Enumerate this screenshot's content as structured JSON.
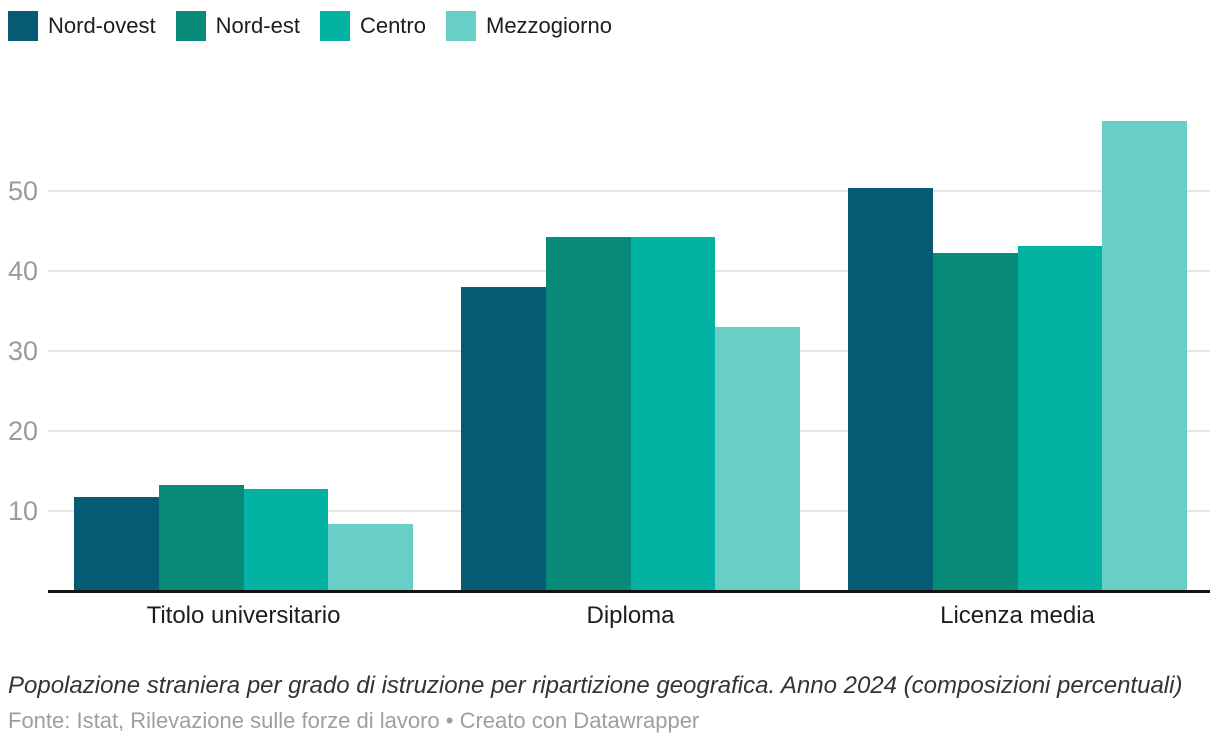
{
  "chart_data": {
    "type": "bar",
    "title": "Popolazione straniera per grado di istruzione per ripartizione geografica. Anno 2024 (composizioni percentuali)",
    "categories": [
      "Titolo universitario",
      "Diploma",
      "Licenza media"
    ],
    "series": [
      {
        "name": "Nord-ovest",
        "color": "#065a73",
        "values": [
          11.7,
          38.0,
          50.4
        ]
      },
      {
        "name": "Nord-est",
        "color": "#088a78",
        "values": [
          13.3,
          44.3,
          42.2
        ]
      },
      {
        "name": "Centro",
        "color": "#02b3a3",
        "values": [
          12.7,
          44.3,
          43.1
        ]
      },
      {
        "name": "Mezzogiorno",
        "color": "#68cfc7",
        "values": [
          8.4,
          33.0,
          58.7
        ]
      }
    ],
    "yticks": [
      10,
      20,
      30,
      40,
      50
    ],
    "ylim": [
      0,
      62
    ],
    "xlabel": "",
    "ylabel": "",
    "grid": "horizontal",
    "legend_position": "top-left"
  },
  "footer": {
    "source": "Fonte: Istat, Rilevazione sulle forze di lavoro • Creato con Datawrapper"
  },
  "colors": {
    "background": "#ffffff",
    "axis_line": "#131313",
    "gridline": "#e6e6e6",
    "tick_label": "#9b9b9b",
    "category_label": "#1d1d1d",
    "note_text": "#333333",
    "source_text": "#9e9e9e"
  }
}
